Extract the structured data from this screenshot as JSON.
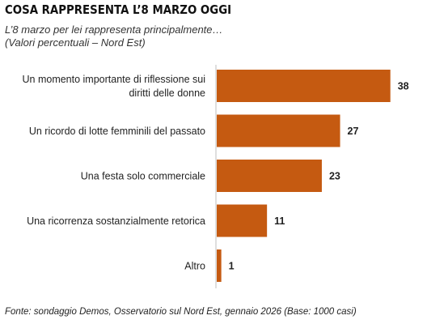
{
  "title": "COSA RAPPRESENTA L’8 MARZO OGGI",
  "subtitle": "L’8 marzo per lei rappresenta principalmente…",
  "subtitle2": "(Valori percentuali – Nord Est)",
  "source": "Fonte: sondaggio Demos, Osservatorio sul Nord Est, gennaio 2026 (Base: 1000 casi)",
  "colors": {
    "bar": "#C55A11",
    "axis": "#BFBFBF"
  },
  "chart_data": {
    "type": "bar",
    "orientation": "horizontal",
    "categories": [
      [
        "Un momento importante di riflessione sui",
        "diritti delle donne"
      ],
      [
        "Un ricordo di lotte femminili del passato"
      ],
      [
        "Una festa solo commerciale"
      ],
      [
        "Una ricorrenza sostanzialmente retorica"
      ],
      [
        "Altro"
      ]
    ],
    "values": [
      38,
      27,
      23,
      11,
      1
    ],
    "xlim": [
      0,
      40
    ],
    "grid": false,
    "legend": "none"
  }
}
